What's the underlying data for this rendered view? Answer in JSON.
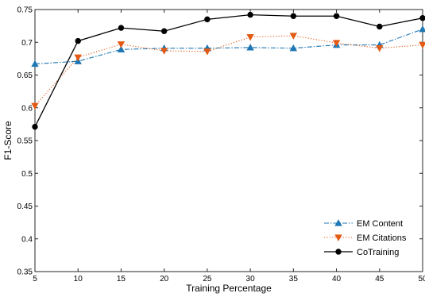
{
  "chart_data": {
    "type": "line",
    "title": "",
    "xlabel": "Training Percentage",
    "ylabel": "F1-Score",
    "x": [
      5,
      10,
      15,
      20,
      25,
      30,
      35,
      40,
      45,
      50
    ],
    "xlim": [
      5,
      50
    ],
    "ylim": [
      0.35,
      0.75
    ],
    "xticks": [
      "5",
      "10",
      "15",
      "20",
      "25",
      "30",
      "35",
      "40",
      "45",
      "50"
    ],
    "yticks": [
      "0.35",
      "0.4",
      "0.45",
      "0.5",
      "0.55",
      "0.6",
      "0.65",
      "0.7",
      "0.75"
    ],
    "grid": false,
    "legend_position": "bottom-right",
    "series": [
      {
        "name": "EM Content",
        "color": "#1f77b4",
        "line_style": "dashdot",
        "marker": "triangle-up",
        "values": [
          0.667,
          0.671,
          0.689,
          0.691,
          0.691,
          0.692,
          0.691,
          0.696,
          0.696,
          0.72
        ]
      },
      {
        "name": "EM Citations",
        "color": "#e35a14",
        "line_style": "dotted",
        "marker": "triangle-down",
        "values": [
          0.603,
          0.677,
          0.697,
          0.687,
          0.686,
          0.708,
          0.71,
          0.699,
          0.691,
          0.696
        ]
      },
      {
        "name": "CoTraining",
        "color": "#000000",
        "line_style": "solid",
        "marker": "circle",
        "values": [
          0.571,
          0.702,
          0.722,
          0.717,
          0.735,
          0.742,
          0.74,
          0.74,
          0.724,
          0.737
        ]
      }
    ]
  }
}
